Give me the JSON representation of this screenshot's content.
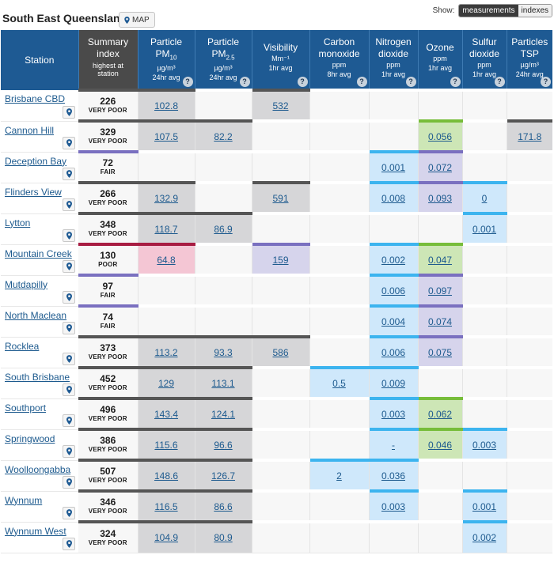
{
  "header": {
    "title": "South East Queensland",
    "map_label": "MAP",
    "show_label": "Show:",
    "toggle": [
      "measurements",
      "indexes"
    ]
  },
  "columns": [
    {
      "name": "Station",
      "unit": "",
      "sub": ""
    },
    {
      "name": "Summary index",
      "unit": "",
      "sub": "highest at station"
    },
    {
      "name": "Particle PM10",
      "unit": "µg/m³",
      "sub": "24hr avg"
    },
    {
      "name": "Particle PM2.5",
      "unit": "µg/m³",
      "sub": "24hr avg"
    },
    {
      "name": "Visibility",
      "unit": "Mm⁻¹",
      "sub": "1hr avg"
    },
    {
      "name": "Carbon monoxide",
      "unit": "ppm",
      "sub": "8hr avg"
    },
    {
      "name": "Nitrogen dioxide",
      "unit": "ppm",
      "sub": "1hr avg"
    },
    {
      "name": "Ozone",
      "unit": "ppm",
      "sub": "1hr avg"
    },
    {
      "name": "Sulfur dioxide",
      "unit": "ppm",
      "sub": "1hr avg"
    },
    {
      "name": "Particles TSP",
      "unit": "µg/m³",
      "sub": "24hr avg"
    }
  ],
  "header_parts": {
    "pm10_a": "Particle",
    "pm10_b": "PM",
    "pm10_sub": "10",
    "pm25_a": "Particle",
    "pm25_b": "PM",
    "pm25_sub": "2.5",
    "co_a": "Carbon",
    "co_b": "monoxide",
    "no2_a": "Nitrogen",
    "no2_b": "dioxide",
    "so2_a": "Sulfur",
    "so2_b": "dioxide",
    "tsp_a": "Particles",
    "tsp_b": "TSP",
    "sum_a": "Summary",
    "sum_b": "index",
    "sum_sub_a": "highest at",
    "sum_sub_b": "station",
    "help": "?"
  },
  "grades": {
    "vp": "#555555",
    "good": "#3cb4ef",
    "fair": "#7a70c0",
    "poor": "#a81c42",
    "vgood": "#77bd3a"
  },
  "rows": [
    {
      "station": "Brisbane CBD",
      "index": "226",
      "category": "VERY POOR",
      "cat": "vp",
      "values": [
        [
          "102.8",
          "vp"
        ],
        [
          "",
          ""
        ],
        [
          "532",
          "vp"
        ],
        [
          "",
          ""
        ],
        [
          "",
          ""
        ],
        [
          "",
          ""
        ],
        [
          "",
          ""
        ],
        [
          "",
          ""
        ]
      ]
    },
    {
      "station": "Cannon Hill",
      "index": "329",
      "category": "VERY POOR",
      "cat": "vp",
      "values": [
        [
          "107.5",
          "vp"
        ],
        [
          "82.2",
          "vp"
        ],
        [
          "",
          ""
        ],
        [
          "",
          ""
        ],
        [
          "",
          ""
        ],
        [
          "0.056",
          "vgood"
        ],
        [
          "",
          ""
        ],
        [
          "171.8",
          "vp"
        ]
      ]
    },
    {
      "station": "Deception Bay",
      "index": "72",
      "category": "FAIR",
      "cat": "fair",
      "values": [
        [
          "",
          ""
        ],
        [
          "",
          ""
        ],
        [
          "",
          ""
        ],
        [
          "",
          ""
        ],
        [
          "0.001",
          "good"
        ],
        [
          "0.072",
          "fair"
        ],
        [
          "",
          ""
        ],
        [
          "",
          ""
        ]
      ]
    },
    {
      "station": "Flinders View",
      "index": "266",
      "category": "VERY POOR",
      "cat": "vp",
      "values": [
        [
          "132.9",
          "vp"
        ],
        [
          "",
          ""
        ],
        [
          "591",
          "vp"
        ],
        [
          "",
          ""
        ],
        [
          "0.008",
          "good"
        ],
        [
          "0.093",
          "fair"
        ],
        [
          "0",
          "good"
        ],
        [
          "",
          ""
        ]
      ]
    },
    {
      "station": "Lytton",
      "index": "348",
      "category": "VERY POOR",
      "cat": "vp",
      "values": [
        [
          "118.7",
          "vp"
        ],
        [
          "86.9",
          "vp"
        ],
        [
          "",
          ""
        ],
        [
          "",
          ""
        ],
        [
          "",
          ""
        ],
        [
          "",
          ""
        ],
        [
          "0.001",
          "good"
        ],
        [
          "",
          ""
        ]
      ]
    },
    {
      "station": "Mountain Creek",
      "index": "130",
      "category": "POOR",
      "cat": "poor",
      "values": [
        [
          "64.8",
          "poor"
        ],
        [
          "",
          ""
        ],
        [
          "159",
          "fair"
        ],
        [
          "",
          ""
        ],
        [
          "0.002",
          "good"
        ],
        [
          "0.047",
          "vgood"
        ],
        [
          "",
          ""
        ],
        [
          "",
          ""
        ]
      ]
    },
    {
      "station": "Mutdapilly",
      "index": "97",
      "category": "FAIR",
      "cat": "fair",
      "values": [
        [
          "",
          ""
        ],
        [
          "",
          ""
        ],
        [
          "",
          ""
        ],
        [
          "",
          ""
        ],
        [
          "0.006",
          "good"
        ],
        [
          "0.097",
          "fair"
        ],
        [
          "",
          ""
        ],
        [
          "",
          ""
        ]
      ]
    },
    {
      "station": "North Maclean",
      "index": "74",
      "category": "FAIR",
      "cat": "fair",
      "values": [
        [
          "",
          ""
        ],
        [
          "",
          ""
        ],
        [
          "",
          ""
        ],
        [
          "",
          ""
        ],
        [
          "0.004",
          "good"
        ],
        [
          "0.074",
          "fair"
        ],
        [
          "",
          ""
        ],
        [
          "",
          ""
        ]
      ]
    },
    {
      "station": "Rocklea",
      "index": "373",
      "category": "VERY POOR",
      "cat": "vp",
      "values": [
        [
          "113.2",
          "vp"
        ],
        [
          "93.3",
          "vp"
        ],
        [
          "586",
          "vp"
        ],
        [
          "",
          ""
        ],
        [
          "0.006",
          "good"
        ],
        [
          "0.075",
          "fair"
        ],
        [
          "",
          ""
        ],
        [
          "",
          ""
        ]
      ]
    },
    {
      "station": "South Brisbane",
      "index": "452",
      "category": "VERY POOR",
      "cat": "vp",
      "values": [
        [
          "129",
          "vp"
        ],
        [
          "113.1",
          "vp"
        ],
        [
          "",
          ""
        ],
        [
          "0.5",
          "good"
        ],
        [
          "0.009",
          "good"
        ],
        [
          "",
          ""
        ],
        [
          "",
          ""
        ],
        [
          "",
          ""
        ]
      ]
    },
    {
      "station": "Southport",
      "index": "496",
      "category": "VERY POOR",
      "cat": "vp",
      "values": [
        [
          "143.4",
          "vp"
        ],
        [
          "124.1",
          "vp"
        ],
        [
          "",
          ""
        ],
        [
          "",
          ""
        ],
        [
          "0.003",
          "good"
        ],
        [
          "0.062",
          "vgood"
        ],
        [
          "",
          ""
        ],
        [
          "",
          ""
        ]
      ]
    },
    {
      "station": "Springwood",
      "index": "386",
      "category": "VERY POOR",
      "cat": "vp",
      "values": [
        [
          "115.6",
          "vp"
        ],
        [
          "96.6",
          "vp"
        ],
        [
          "",
          ""
        ],
        [
          "",
          ""
        ],
        [
          "-",
          "good"
        ],
        [
          "0.046",
          "vgood"
        ],
        [
          "0.003",
          "good"
        ],
        [
          "",
          ""
        ]
      ]
    },
    {
      "station": "Woolloongabba",
      "index": "507",
      "category": "VERY POOR",
      "cat": "vp",
      "values": [
        [
          "148.6",
          "vp"
        ],
        [
          "126.7",
          "vp"
        ],
        [
          "",
          ""
        ],
        [
          "2",
          "good"
        ],
        [
          "0.036",
          "good"
        ],
        [
          "",
          ""
        ],
        [
          "",
          ""
        ],
        [
          "",
          ""
        ]
      ]
    },
    {
      "station": "Wynnum",
      "index": "346",
      "category": "VERY POOR",
      "cat": "vp",
      "values": [
        [
          "116.5",
          "vp"
        ],
        [
          "86.6",
          "vp"
        ],
        [
          "",
          ""
        ],
        [
          "",
          ""
        ],
        [
          "0.003",
          "good"
        ],
        [
          "",
          ""
        ],
        [
          "0.001",
          "good"
        ],
        [
          "",
          ""
        ]
      ]
    },
    {
      "station": "Wynnum West",
      "index": "324",
      "category": "VERY POOR",
      "cat": "vp",
      "values": [
        [
          "104.9",
          "vp"
        ],
        [
          "80.9",
          "vp"
        ],
        [
          "",
          ""
        ],
        [
          "",
          ""
        ],
        [
          "",
          ""
        ],
        [
          "",
          ""
        ],
        [
          "0.002",
          "good"
        ],
        [
          "",
          ""
        ]
      ]
    }
  ]
}
